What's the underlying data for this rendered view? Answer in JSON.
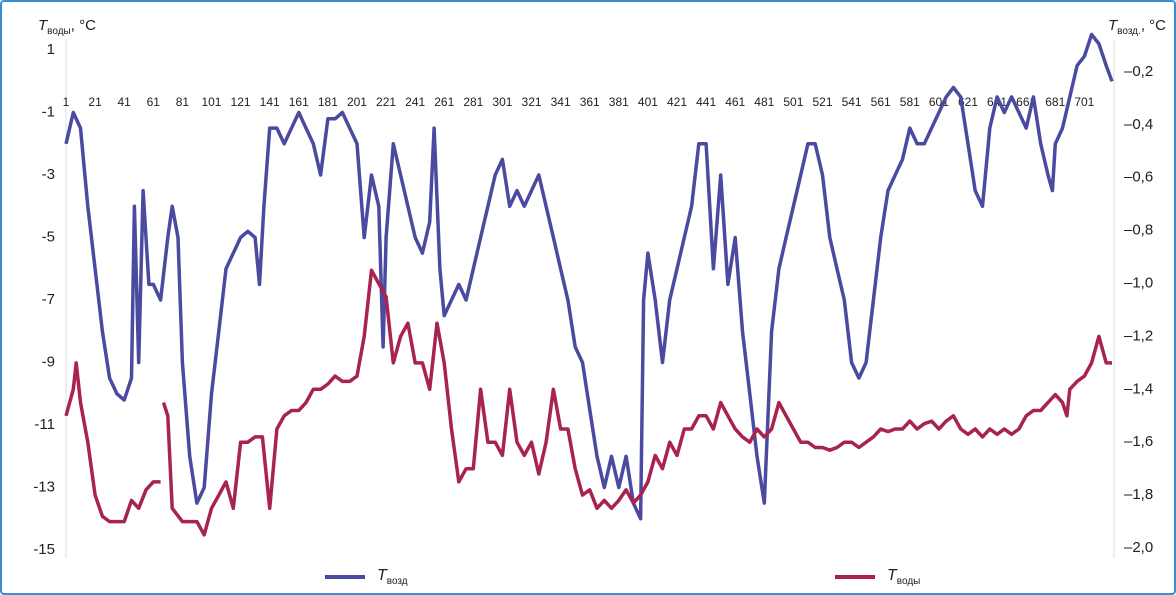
{
  "chart_data": {
    "type": "line",
    "y_label": "Tводы, °C",
    "y2_label": "Tвозд., °C",
    "xlim": [
      1,
      720
    ],
    "xticks": [
      1,
      21,
      41,
      61,
      81,
      101,
      121,
      141,
      161,
      181,
      201,
      221,
      241,
      261,
      281,
      301,
      321,
      341,
      361,
      381,
      401,
      421,
      441,
      461,
      481,
      501,
      521,
      541,
      561,
      581,
      601,
      621,
      641,
      661,
      681,
      701
    ],
    "ylim": [
      1,
      -15
    ],
    "yticks": [
      1,
      -1,
      -3,
      -5,
      -7,
      -9,
      -11,
      -13,
      -15
    ],
    "y2lim": [
      -0.2,
      -2.0
    ],
    "y2ticks": [
      {
        "value": -0.2,
        "label": "–0,2"
      },
      {
        "value": -0.4,
        "label": "–0,4"
      },
      {
        "value": -0.6,
        "label": "–0,6"
      },
      {
        "value": -0.8,
        "label": "–0,8"
      },
      {
        "value": -1.0,
        "label": "–1,0"
      },
      {
        "value": -1.2,
        "label": "–1,2"
      },
      {
        "value": -1.4,
        "label": "–1,4"
      },
      {
        "value": -1.6,
        "label": "–1,6"
      },
      {
        "value": -1.8,
        "label": "–1,8"
      },
      {
        "value": -2.0,
        "label": "–2,0"
      }
    ],
    "grid": false,
    "series": [
      {
        "name": "Tвозд",
        "color": "#4a4aa0",
        "axis": "y",
        "x": [
          1,
          6,
          11,
          16,
          21,
          26,
          31,
          36,
          41,
          46,
          48,
          51,
          54,
          58,
          61,
          66,
          71,
          74,
          78,
          81,
          86,
          91,
          96,
          101,
          106,
          111,
          116,
          121,
          126,
          131,
          134,
          137,
          141,
          146,
          151,
          156,
          161,
          166,
          171,
          176,
          181,
          186,
          191,
          196,
          201,
          206,
          211,
          216,
          219,
          221,
          226,
          231,
          236,
          241,
          246,
          251,
          254,
          258,
          261,
          266,
          271,
          276,
          281,
          286,
          291,
          296,
          301,
          306,
          311,
          316,
          321,
          326,
          331,
          336,
          341,
          346,
          351,
          356,
          361,
          366,
          371,
          376,
          381,
          386,
          391,
          396,
          398,
          401,
          406,
          411,
          416,
          421,
          426,
          431,
          436,
          441,
          446,
          451,
          456,
          461,
          466,
          471,
          476,
          481,
          486,
          491,
          496,
          501,
          506,
          511,
          516,
          521,
          526,
          531,
          536,
          541,
          546,
          551,
          556,
          561,
          566,
          571,
          576,
          581,
          586,
          591,
          596,
          601,
          606,
          611,
          616,
          621,
          626,
          631,
          636,
          641,
          646,
          651,
          656,
          661,
          666,
          671,
          676,
          679,
          681,
          686,
          691,
          696,
          701,
          706,
          711,
          716,
          720
        ],
        "values": [
          -2.0,
          -1.0,
          -1.5,
          -4,
          -6,
          -8,
          -9.5,
          -10,
          -10.2,
          -9.5,
          -4,
          -9,
          -3.5,
          -6.5,
          -6.5,
          -7,
          -5,
          -4,
          -5,
          -9,
          -12,
          -13.5,
          -13,
          -10,
          -8,
          -6,
          -5.5,
          -5,
          -4.8,
          -5,
          -6.5,
          -4,
          -1.5,
          -1.5,
          -2,
          -1.5,
          -1,
          -1.5,
          -2,
          -3,
          -1.2,
          -1.2,
          -1,
          -1.5,
          -2,
          -5,
          -3,
          -4,
          -8.5,
          -5,
          -2,
          -3,
          -4,
          -5,
          -5.5,
          -4.5,
          -1.5,
          -6,
          -7.5,
          -7,
          -6.5,
          -7,
          -6,
          -5,
          -4,
          -3,
          -2.5,
          -4,
          -3.5,
          -4,
          -3.5,
          -3,
          -4,
          -5,
          -6,
          -7,
          -8.5,
          -9,
          -10.5,
          -12,
          -13,
          -12,
          -13,
          -12,
          -13.5,
          -14,
          -7,
          -5.5,
          -7,
          -9,
          -7,
          -6,
          -5,
          -4,
          -2,
          -2,
          -6,
          -3,
          -6.5,
          -5,
          -8,
          -10,
          -12,
          -13.5,
          -8,
          -6,
          -5,
          -4,
          -3,
          -2,
          -2,
          -3,
          -5,
          -6,
          -7,
          -9,
          -9.5,
          -9,
          -7,
          -5,
          -3.5,
          -3,
          -2.5,
          -1.5,
          -2,
          -2,
          -1.5,
          -1,
          -0.5,
          -0.2,
          -0.5,
          -2,
          -3.5,
          -4,
          -1.5,
          -0.5,
          -1,
          -0.5,
          -1,
          -1.5,
          -0.5,
          -2,
          -3,
          -3.5,
          -2,
          -1.5,
          -0.5,
          0.5,
          0.8,
          1.5,
          1.2,
          0.5,
          0
        ]
      },
      {
        "name": "Tводы",
        "color": "#a8234f",
        "axis": "y2",
        "x": [
          1,
          6,
          8,
          11,
          16,
          21,
          26,
          31,
          36,
          41,
          46,
          51,
          56,
          61,
          66,
          67,
          68,
          71,
          74,
          81,
          91,
          96,
          101,
          106,
          111,
          116,
          121,
          126,
          131,
          136,
          141,
          146,
          151,
          156,
          161,
          166,
          171,
          176,
          181,
          186,
          191,
          196,
          201,
          206,
          211,
          216,
          221,
          226,
          231,
          236,
          241,
          246,
          251,
          256,
          261,
          266,
          271,
          276,
          281,
          286,
          291,
          296,
          301,
          306,
          311,
          316,
          321,
          326,
          331,
          336,
          341,
          346,
          351,
          356,
          361,
          366,
          371,
          376,
          381,
          386,
          391,
          396,
          401,
          406,
          411,
          416,
          421,
          426,
          431,
          436,
          441,
          446,
          451,
          456,
          461,
          466,
          471,
          476,
          481,
          486,
          491,
          496,
          501,
          506,
          511,
          516,
          521,
          526,
          531,
          536,
          541,
          546,
          551,
          556,
          561,
          566,
          571,
          576,
          581,
          586,
          591,
          596,
          601,
          606,
          611,
          616,
          621,
          626,
          631,
          636,
          641,
          646,
          651,
          656,
          661,
          666,
          671,
          676,
          681,
          686,
          689,
          691,
          696,
          701,
          706,
          711,
          716,
          720
        ],
        "values": [
          -1.5,
          -1.4,
          -1.3,
          -1.45,
          -1.6,
          -1.8,
          -1.88,
          -1.9,
          -1.9,
          -1.9,
          -1.82,
          -1.85,
          -1.78,
          -1.75,
          -1.75,
          null,
          -1.45,
          -1.5,
          -1.85,
          -1.9,
          -1.9,
          -1.95,
          -1.85,
          -1.8,
          -1.75,
          -1.85,
          -1.6,
          -1.6,
          -1.58,
          -1.58,
          -1.85,
          -1.55,
          -1.5,
          -1.48,
          -1.48,
          -1.45,
          -1.4,
          -1.4,
          -1.38,
          -1.35,
          -1.37,
          -1.37,
          -1.35,
          -1.2,
          -0.95,
          -1.0,
          -1.05,
          -1.3,
          -1.2,
          -1.15,
          -1.3,
          -1.3,
          -1.4,
          -1.15,
          -1.3,
          -1.55,
          -1.75,
          -1.7,
          -1.7,
          -1.4,
          -1.6,
          -1.6,
          -1.65,
          -1.4,
          -1.6,
          -1.65,
          -1.6,
          -1.72,
          -1.6,
          -1.4,
          -1.55,
          -1.55,
          -1.7,
          -1.8,
          -1.78,
          -1.85,
          -1.82,
          -1.85,
          -1.82,
          -1.78,
          -1.83,
          -1.8,
          -1.75,
          -1.65,
          -1.7,
          -1.6,
          -1.65,
          -1.55,
          -1.55,
          -1.5,
          -1.5,
          -1.55,
          -1.45,
          -1.5,
          -1.55,
          -1.58,
          -1.6,
          -1.55,
          -1.58,
          -1.55,
          -1.45,
          -1.5,
          -1.55,
          -1.6,
          -1.6,
          -1.62,
          -1.62,
          -1.63,
          -1.62,
          -1.6,
          -1.6,
          -1.62,
          -1.6,
          -1.58,
          -1.55,
          -1.56,
          -1.55,
          -1.55,
          -1.52,
          -1.55,
          -1.53,
          -1.52,
          -1.55,
          -1.52,
          -1.5,
          -1.55,
          -1.57,
          -1.55,
          -1.58,
          -1.55,
          -1.57,
          -1.55,
          -1.57,
          -1.55,
          -1.5,
          -1.48,
          -1.48,
          -1.45,
          -1.42,
          -1.45,
          -1.5,
          -1.4,
          -1.37,
          -1.35,
          -1.3,
          -1.2,
          -1.3,
          -1.3
        ]
      }
    ]
  }
}
